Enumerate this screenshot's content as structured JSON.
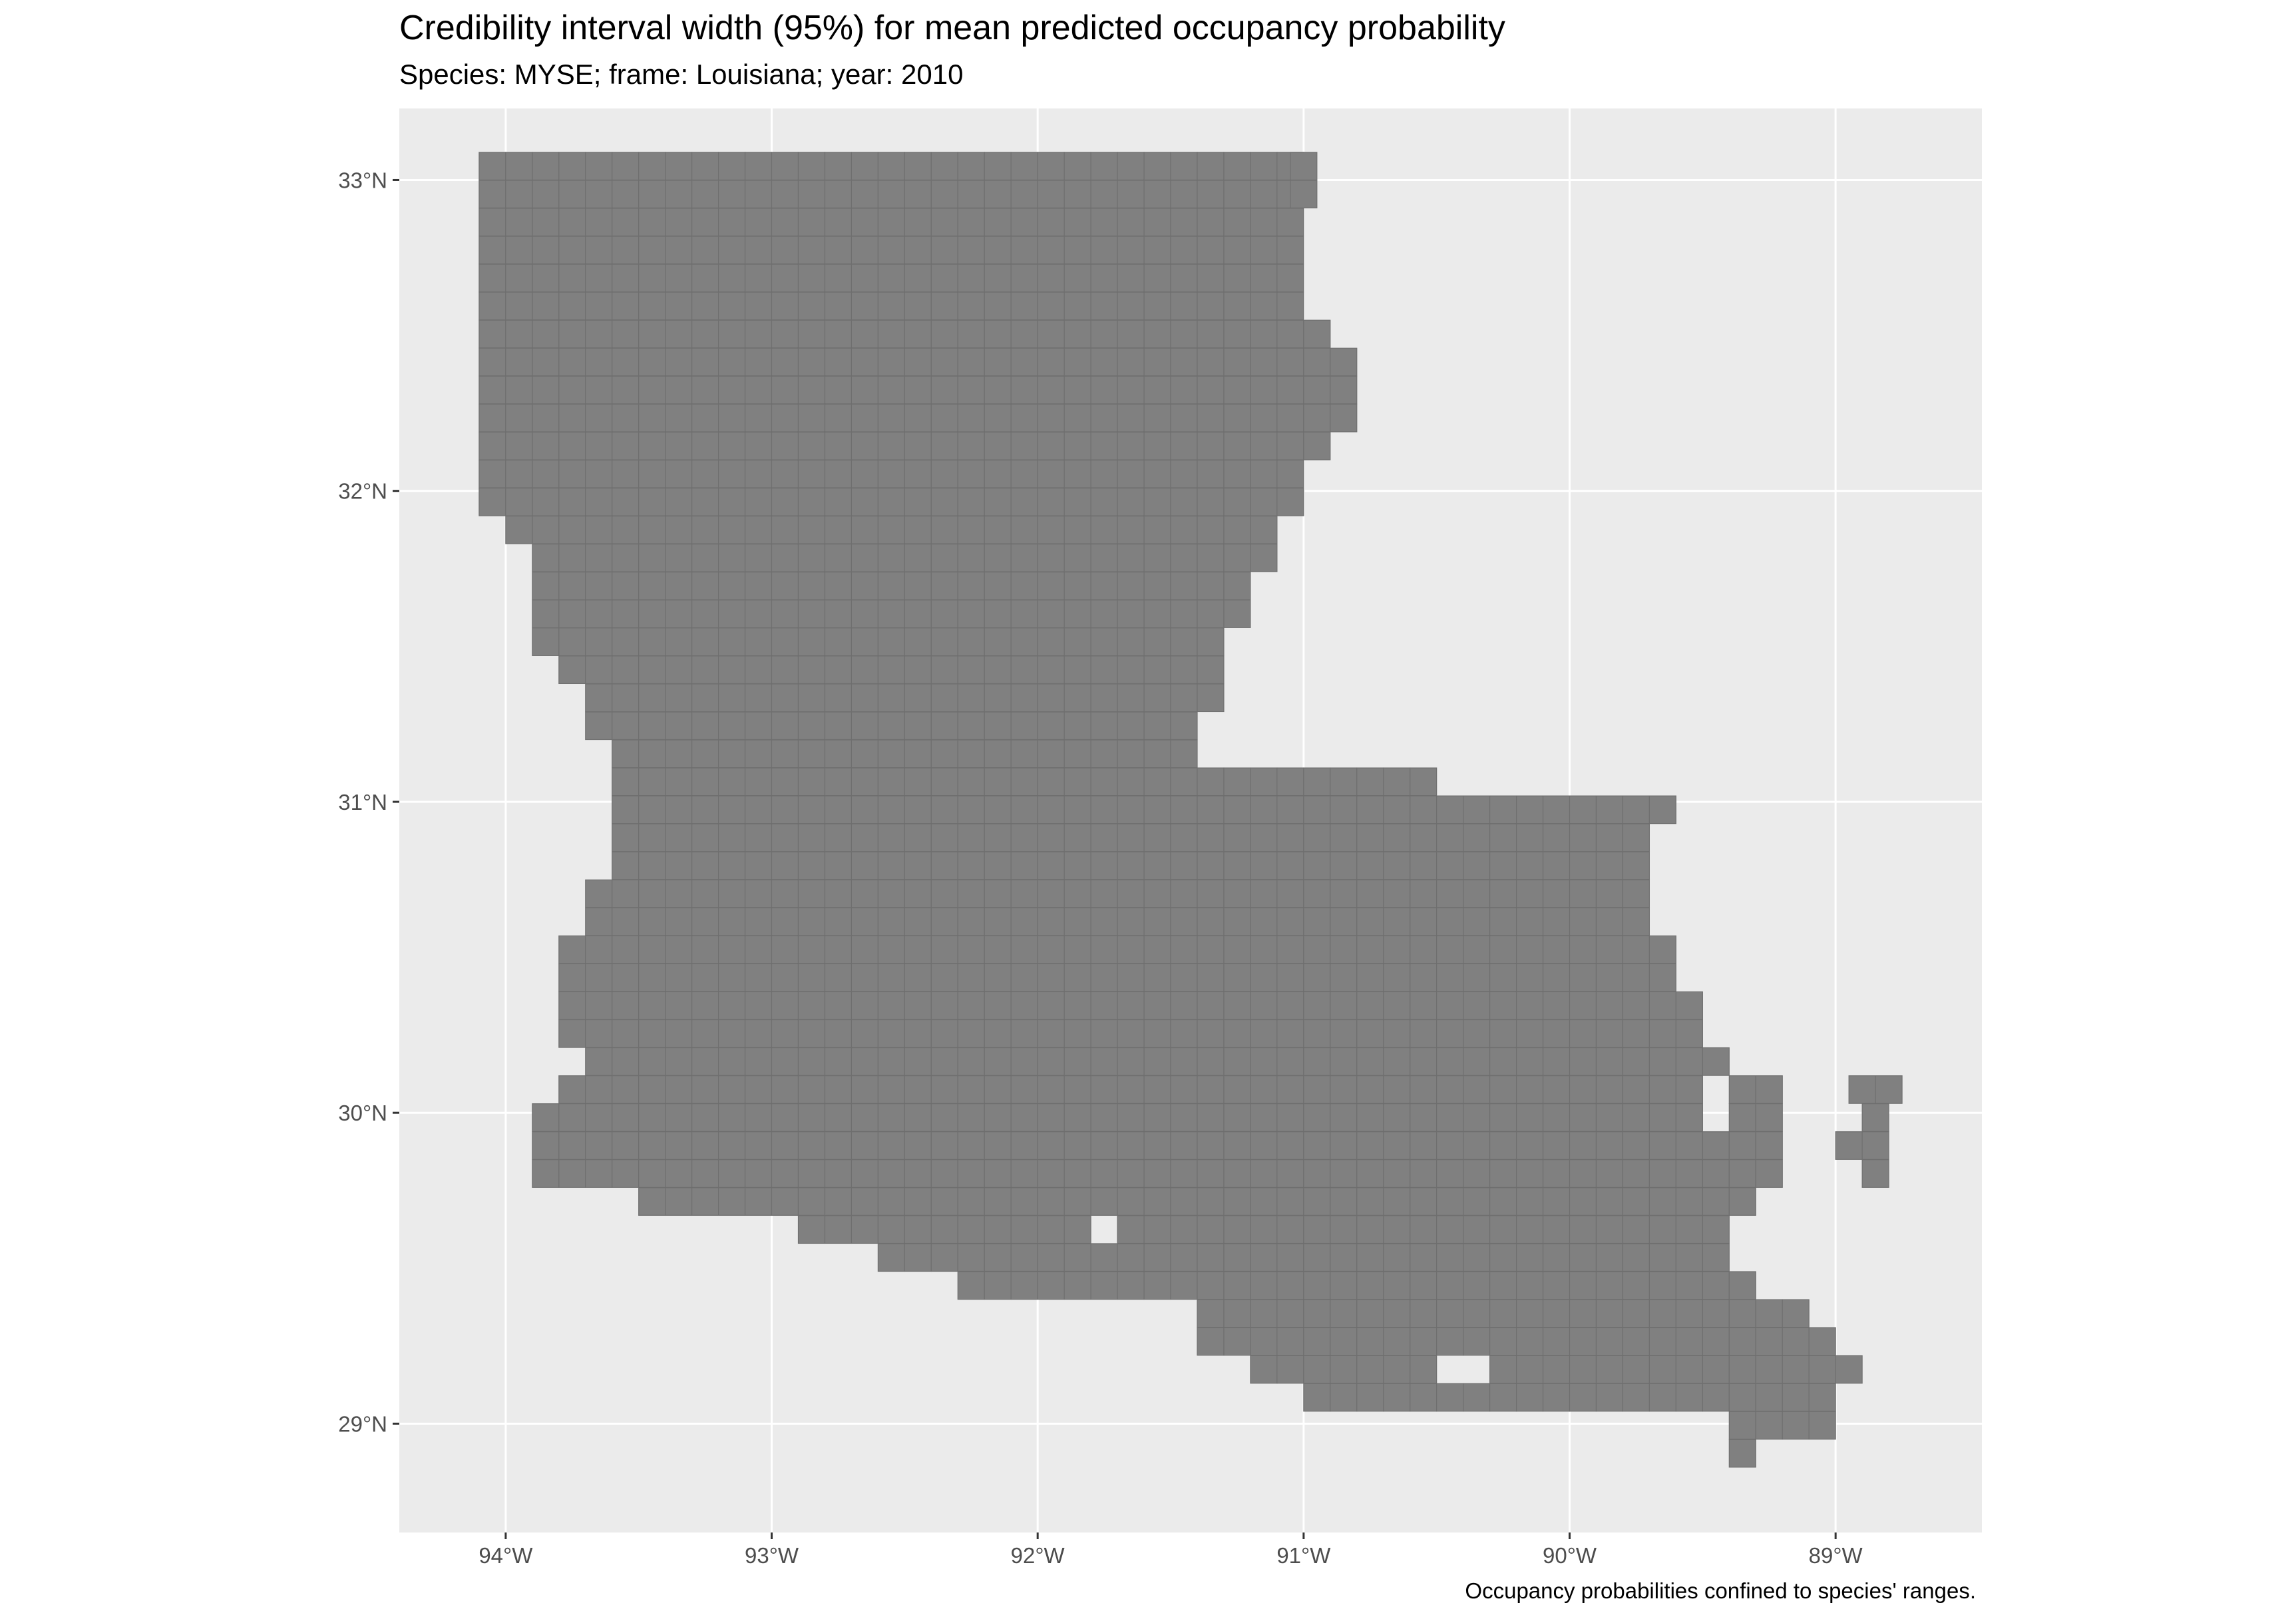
{
  "title": "Credibility interval width (95%) for mean predicted occupancy probability",
  "subtitle": "Species: MYSE; frame: Louisiana; year: 2010",
  "caption": "Occupancy probabilities confined to species' ranges.",
  "colors": {
    "panel_background": "#ebebeb",
    "grid": "#ffffff",
    "cell_fill": "#808080",
    "cell_border": "#6f6f6f",
    "tick_text": "#4d4d4d"
  },
  "map_data": {
    "type": "gridded choropleth (all cells single gray value)",
    "projection": "lon/lat",
    "xlim": [
      -94.4,
      -88.45
    ],
    "ylim": [
      28.65,
      33.23
    ],
    "grid": true,
    "legend": "none",
    "x_ticks": [
      {
        "value": -94,
        "label": "94°W"
      },
      {
        "value": -93,
        "label": "93°W"
      },
      {
        "value": -92,
        "label": "92°W"
      },
      {
        "value": -91,
        "label": "91°W"
      },
      {
        "value": -90,
        "label": "90°W"
      },
      {
        "value": -89,
        "label": "89°W"
      }
    ],
    "y_ticks": [
      {
        "value": 29,
        "label": "29°N"
      },
      {
        "value": 30,
        "label": "30°N"
      },
      {
        "value": 31,
        "label": "31°N"
      },
      {
        "value": 32,
        "label": "32°N"
      },
      {
        "value": 33,
        "label": "33°N"
      }
    ],
    "cell_size_deg": [
      0.1,
      0.089
    ],
    "row_spans_lat_lon": [
      [
        33.0,
        -94.1,
        -91.05
      ],
      [
        33.0,
        -91.05,
        -90.95
      ],
      [
        32.91,
        -94.1,
        -91.05
      ],
      [
        32.91,
        -91.05,
        -90.95
      ],
      [
        32.82,
        -94.1,
        -91.05
      ],
      [
        32.73,
        -94.1,
        -91.0
      ],
      [
        32.64,
        -94.1,
        -91.0
      ],
      [
        32.55,
        -94.1,
        -91.0
      ],
      [
        32.46,
        -94.1,
        -90.9
      ],
      [
        32.37,
        -94.1,
        -90.8
      ],
      [
        32.28,
        -94.1,
        -90.8
      ],
      [
        32.19,
        -94.1,
        -90.85
      ],
      [
        32.1,
        -94.1,
        -90.95
      ],
      [
        32.01,
        -94.1,
        -91.0
      ],
      [
        31.92,
        -94.1,
        -91.05
      ],
      [
        31.83,
        -94.0,
        -91.15
      ],
      [
        31.74,
        -93.9,
        -91.15
      ],
      [
        31.65,
        -93.9,
        -91.25
      ],
      [
        31.56,
        -93.9,
        -91.25
      ],
      [
        31.47,
        -93.9,
        -91.35
      ],
      [
        31.38,
        -93.8,
        -91.35
      ],
      [
        31.29,
        -93.7,
        -91.35
      ],
      [
        31.2,
        -93.7,
        -91.45
      ],
      [
        31.11,
        -93.6,
        -91.45
      ],
      [
        31.02,
        -93.6,
        -90.5
      ],
      [
        30.93,
        -93.6,
        -89.6
      ],
      [
        30.84,
        -93.6,
        -89.7
      ],
      [
        30.75,
        -93.6,
        -89.7
      ],
      [
        30.66,
        -93.7,
        -89.7
      ],
      [
        30.57,
        -93.7,
        -89.7
      ],
      [
        30.48,
        -93.8,
        -89.6
      ],
      [
        30.39,
        -93.8,
        -89.6
      ],
      [
        30.3,
        -93.8,
        -89.5
      ],
      [
        30.21,
        -93.8,
        -89.5
      ],
      [
        30.12,
        -93.7,
        -89.4
      ],
      [
        30.03,
        -93.8,
        -89.5
      ],
      [
        30.03,
        -89.4,
        -89.2
      ],
      [
        29.94,
        -93.9,
        -89.5
      ],
      [
        29.94,
        -89.4,
        -89.2
      ],
      [
        29.85,
        -93.9,
        -89.2
      ],
      [
        29.76,
        -93.9,
        -89.2
      ],
      [
        29.67,
        -93.5,
        -89.3
      ],
      [
        29.58,
        -92.9,
        -89.4
      ],
      [
        29.49,
        -92.6,
        -89.4
      ],
      [
        29.4,
        -92.3,
        -89.3
      ],
      [
        29.31,
        -91.4,
        -89.1
      ],
      [
        29.22,
        -91.4,
        -89.0
      ],
      [
        29.13,
        -91.2,
        -88.95
      ],
      [
        29.04,
        -91.0,
        -89.05
      ],
      [
        28.95,
        -89.4,
        -89.05
      ],
      [
        28.86,
        -89.4,
        -89.3
      ]
    ],
    "holes_lat_lon": [
      [
        30.0,
        -89.65
      ],
      [
        29.58,
        -91.8
      ],
      [
        29.13,
        -90.5
      ],
      [
        29.13,
        -90.4
      ]
    ],
    "islands_lat_lon": [
      [
        30.03,
        -88.95,
        -88.75
      ],
      [
        29.94,
        -88.9,
        -88.8
      ],
      [
        29.85,
        -89.0,
        -88.8
      ],
      [
        29.76,
        -88.9,
        -88.8
      ]
    ]
  }
}
